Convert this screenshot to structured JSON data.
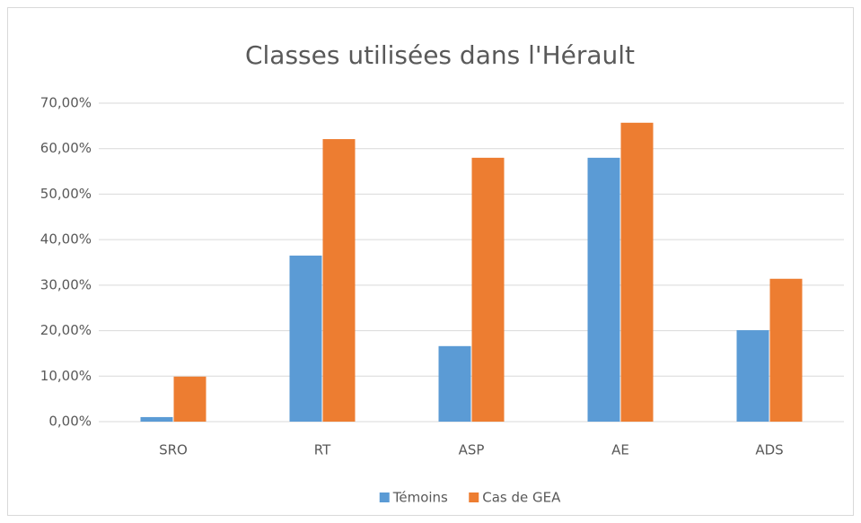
{
  "chart_data": {
    "type": "bar",
    "title": "Classes utilisées dans l'Hérault",
    "categories": [
      "SRO",
      "RT",
      "ASP",
      "AE",
      "ADS"
    ],
    "series": [
      {
        "name": "Témoins",
        "color": "#5b9bd5",
        "values": [
          1.0,
          36.5,
          16.6,
          58.0,
          20.1
        ]
      },
      {
        "name": "Cas de GEA",
        "color": "#ed7d31",
        "values": [
          9.9,
          62.1,
          58.0,
          65.7,
          31.4
        ]
      }
    ],
    "ylim": [
      0,
      70
    ],
    "yticks": [
      {
        "value": 0,
        "label": "0,00%"
      },
      {
        "value": 10,
        "label": "10,00%"
      },
      {
        "value": 20,
        "label": "20,00%"
      },
      {
        "value": 30,
        "label": "30,00%"
      },
      {
        "value": 40,
        "label": "40,00%"
      },
      {
        "value": 50,
        "label": "50,00%"
      },
      {
        "value": 60,
        "label": "60,00%"
      },
      {
        "value": 70,
        "label": "70,00%"
      }
    ],
    "grid": true,
    "legend": "bottom"
  }
}
